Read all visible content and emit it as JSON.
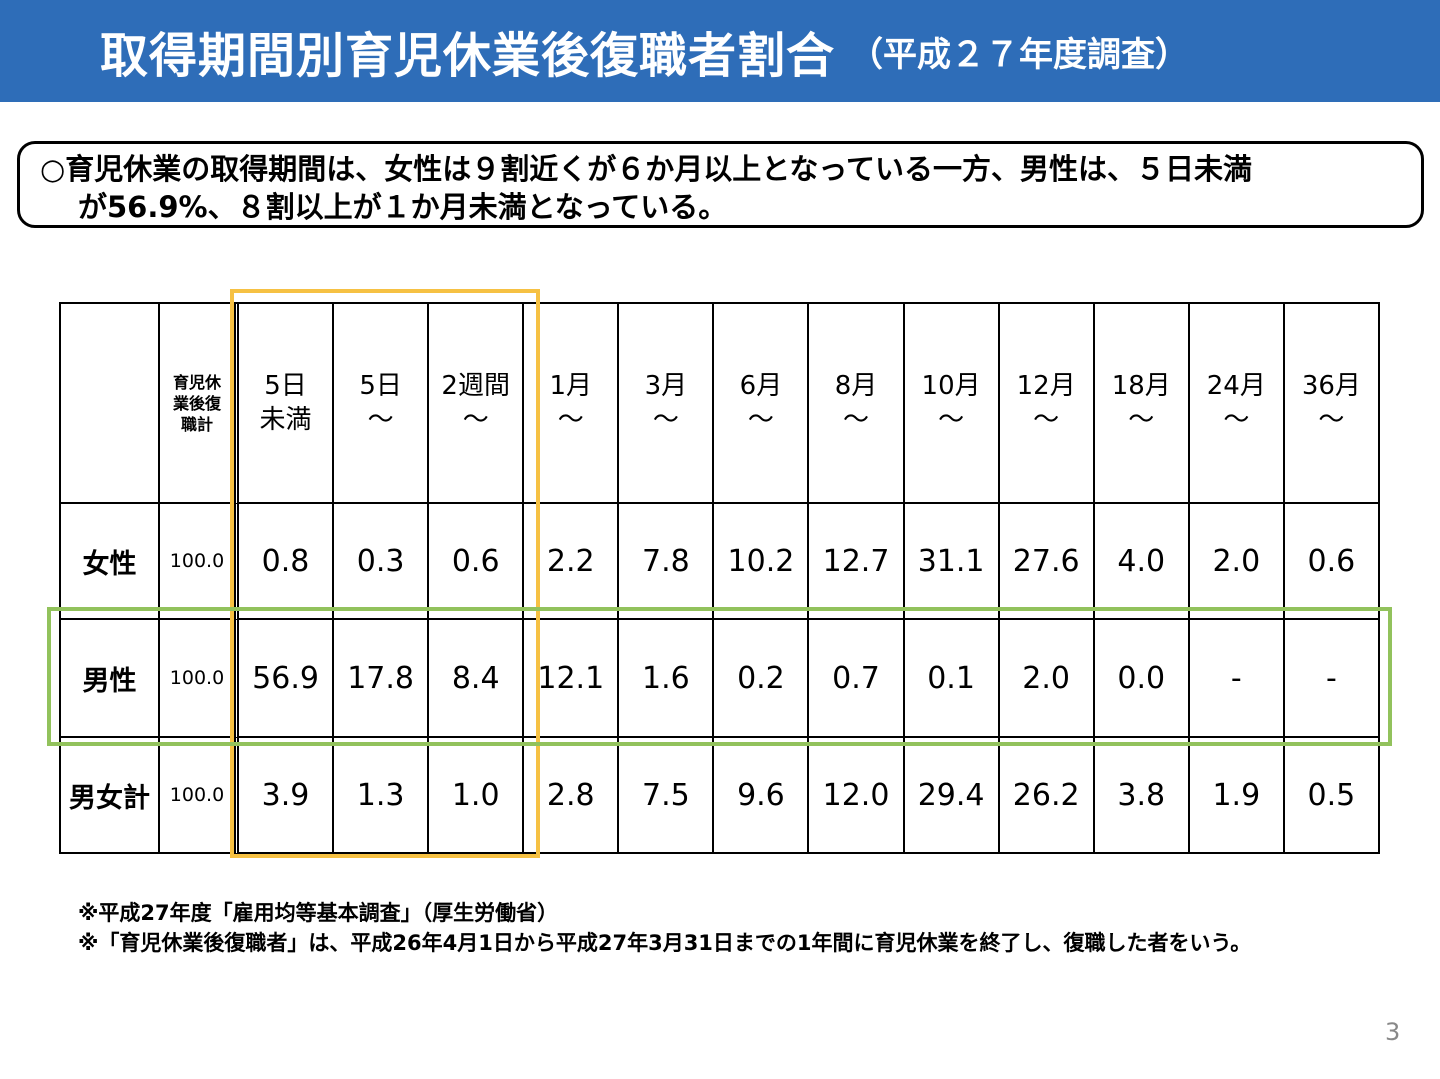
{
  "title": {
    "main": "取得期間別育児休業後復職者割合",
    "sub": "（平成２７年度調査）"
  },
  "summary": {
    "line1": "○育児休業の取得期間は、女性は９割近くが６か月以上となっている一方、男性は、５日未満",
    "line2": "が56.9%、８割以上が１か月未満となっている。"
  },
  "table": {
    "corner": "",
    "total_header": [
      "育児休",
      "業後復",
      "職計"
    ],
    "columns": [
      [
        "5日",
        "未満"
      ],
      [
        "5日",
        "〜"
      ],
      [
        "2週間",
        "〜"
      ],
      [
        "1月",
        "〜"
      ],
      [
        "3月",
        "〜"
      ],
      [
        "6月",
        "〜"
      ],
      [
        "8月",
        "〜"
      ],
      [
        "10月",
        "〜"
      ],
      [
        "12月",
        "〜"
      ],
      [
        "18月",
        "〜"
      ],
      [
        "24月",
        "〜"
      ],
      [
        "36月",
        "〜"
      ]
    ],
    "rows": [
      {
        "label": "女性",
        "total": "100.0",
        "values": [
          "0.8",
          "0.3",
          "0.6",
          "2.2",
          "7.8",
          "10.2",
          "12.7",
          "31.1",
          "27.6",
          "4.0",
          "2.0",
          "0.6"
        ]
      },
      {
        "label": "男性",
        "total": "100.0",
        "values": [
          "56.9",
          "17.8",
          "8.4",
          "12.1",
          "1.6",
          "0.2",
          "0.7",
          "0.1",
          "2.0",
          "0.0",
          "-",
          "-"
        ]
      },
      {
        "label": "男女計",
        "total": "100.0",
        "values": [
          "3.9",
          "1.3",
          "1.0",
          "2.8",
          "7.5",
          "9.6",
          "12.0",
          "29.4",
          "26.2",
          "3.8",
          "1.9",
          "0.5"
        ]
      }
    ]
  },
  "highlight_colors": {
    "short_periods": "#f6c143",
    "male_row": "#92c25c",
    "title_bar": "#2e6db8"
  },
  "notes": [
    "※平成27年度「雇用均等基本調査」（厚生労働省）",
    "※「育児休業後復職者」は、平成26年4月1日から平成27年3月31日までの1年間に育児休業を終了し、復職した者をいう。"
  ],
  "page_number": "3"
}
